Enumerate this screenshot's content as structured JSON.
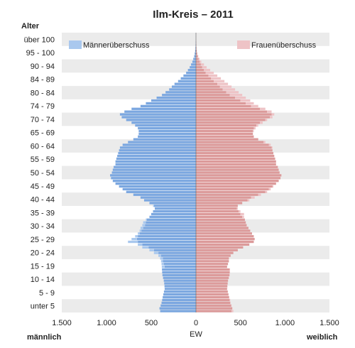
{
  "chart_data": {
    "type": "bar",
    "title": "Ilm-Kreis – 2011",
    "y_axis_title": "Alter",
    "x_axis_label": "EW",
    "left_side_label": "männlich",
    "right_side_label": "weiblich",
    "age_labels": [
      "über 100",
      "95 - 100",
      "90 - 94",
      "84 - 89",
      "80 - 84",
      "74 - 79",
      "70 - 74",
      "65 - 69",
      "60 - 64",
      "55 - 59",
      "50 - 54",
      "45 - 49",
      "40 - 44",
      "35 - 39",
      "30 - 34",
      "25 - 29",
      "20 - 24",
      "15 - 19",
      "10 - 14",
      "5 - 9",
      "unter 5"
    ],
    "x_ticks": [
      {
        "value": -1500,
        "label": "1.500"
      },
      {
        "value": -1000,
        "label": "1.000"
      },
      {
        "value": -500,
        "label": "500"
      },
      {
        "value": 0,
        "label": "0"
      },
      {
        "value": 500,
        "label": "500"
      },
      {
        "value": 1000,
        "label": "1.000"
      },
      {
        "value": 1500,
        "label": "1.500"
      }
    ],
    "xlim": [
      -1500,
      1500
    ],
    "age_range": [
      0,
      101
    ],
    "legend": [
      {
        "name": "Männerüberschuss",
        "color": "#a9c8ee",
        "position": "top-left"
      },
      {
        "name": "Frauenüberschuss",
        "color": "#eec3c6",
        "position": "top-right"
      }
    ],
    "colors": {
      "male": "#7ba7e0",
      "female": "#dc9a9a",
      "male_surplus": "#a9c8ee",
      "female_surplus": "#eec3c6",
      "band": "#ebebeb"
    },
    "male": [
      400,
      408,
      395,
      385,
      378,
      372,
      365,
      358,
      350,
      352,
      355,
      360,
      368,
      375,
      378,
      380,
      382,
      385,
      390,
      400,
      420,
      470,
      520,
      600,
      650,
      760,
      720,
      680,
      650,
      630,
      620,
      600,
      590,
      560,
      520,
      500,
      480,
      460,
      480,
      520,
      580,
      620,
      700,
      780,
      820,
      860,
      900,
      930,
      950,
      960,
      940,
      930,
      920,
      900,
      900,
      890,
      880,
      870,
      860,
      850,
      820,
      760,
      700,
      650,
      640,
      640,
      650,
      680,
      720,
      780,
      830,
      850,
      800,
      720,
      620,
      560,
      500,
      440,
      380,
      340,
      300,
      270,
      240,
      200,
      170,
      140,
      110,
      90,
      70,
      55,
      40,
      30,
      20,
      14,
      9,
      6,
      4,
      2,
      1,
      1,
      1
    ],
    "female": [
      420,
      410,
      400,
      390,
      385,
      375,
      368,
      360,
      352,
      355,
      358,
      362,
      372,
      380,
      383,
      380,
      350,
      360,
      370,
      370,
      390,
      420,
      470,
      530,
      600,
      650,
      660,
      650,
      630,
      610,
      590,
      570,
      560,
      550,
      540,
      540,
      500,
      470,
      470,
      520,
      600,
      660,
      730,
      800,
      840,
      870,
      900,
      930,
      950,
      960,
      940,
      930,
      920,
      900,
      900,
      890,
      880,
      870,
      860,
      860,
      840,
      780,
      700,
      650,
      640,
      650,
      670,
      700,
      750,
      800,
      860,
      880,
      850,
      780,
      700,
      650,
      610,
      560,
      520,
      480,
      440,
      400,
      360,
      320,
      280,
      240,
      200,
      160,
      120,
      90,
      60,
      40,
      26,
      16,
      10,
      6,
      4,
      2,
      1,
      1,
      1
    ]
  }
}
